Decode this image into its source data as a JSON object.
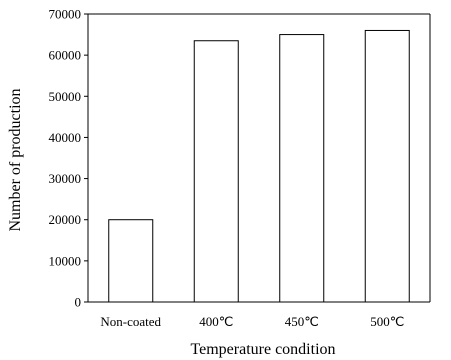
{
  "chart_data": {
    "type": "bar",
    "categories": [
      "Non-coated",
      "400℃",
      "450℃",
      "500℃"
    ],
    "values": [
      20000,
      63500,
      65000,
      66000
    ],
    "xlabel": "Temperature condition",
    "ylabel": "Number of  production",
    "ylim": [
      0,
      70000
    ],
    "yticks": [
      0,
      10000,
      20000,
      30000,
      40000,
      50000,
      60000,
      70000
    ],
    "grid": false,
    "colors": {
      "bar_fill": "#ffffff",
      "bar_stroke": "#000000",
      "axis": "#000000"
    }
  }
}
